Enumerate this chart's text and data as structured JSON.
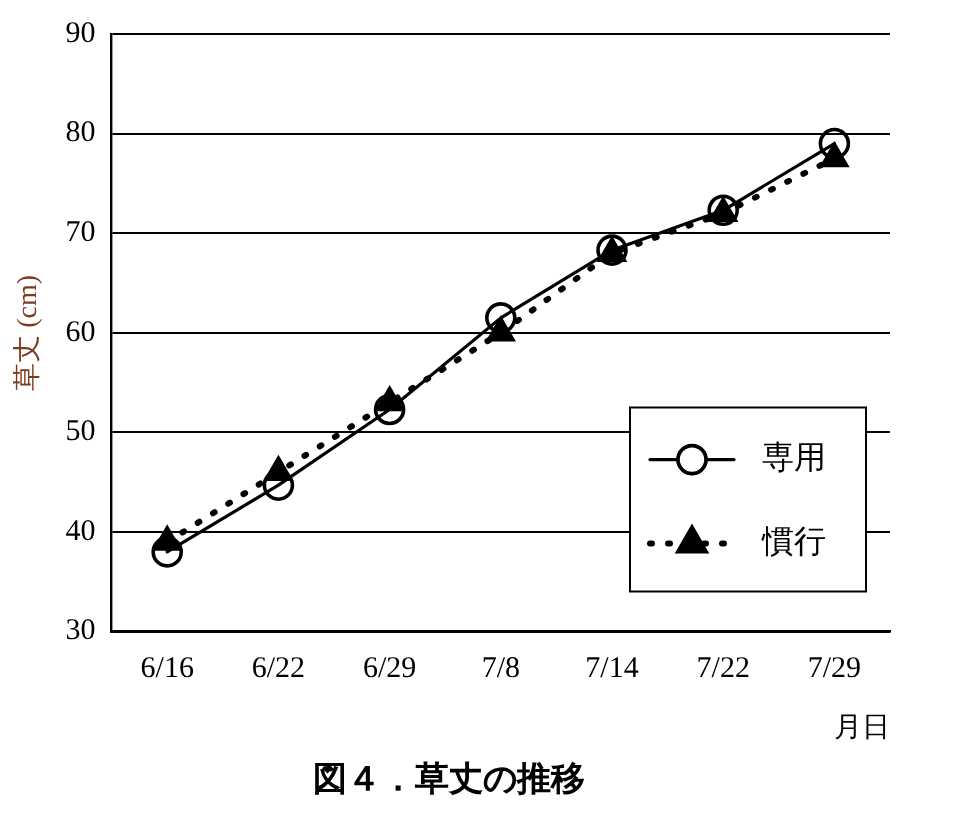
{
  "chart_data": {
    "type": "line",
    "title": "図４．草丈の推移",
    "xlabel": "月日",
    "ylabel": "草丈 (cm)",
    "categories": [
      "6/16",
      "6/22",
      "6/29",
      "7/8",
      "7/14",
      "7/22",
      "7/29"
    ],
    "series": [
      {
        "name": "専用",
        "color": "#000000",
        "marker": "circle",
        "line_style": "solid",
        "values": [
          38,
          44.7,
          52.3,
          61.5,
          68.3,
          72.3,
          79
        ]
      },
      {
        "name": "慣行",
        "color": "#000000",
        "marker": "triangle",
        "line_style": "dotted",
        "values": [
          39,
          46,
          53,
          60,
          68,
          72,
          77.5
        ]
      }
    ],
    "ylim": [
      30,
      90
    ],
    "yticks": [
      30,
      40,
      50,
      60,
      70,
      80,
      90
    ],
    "grid": "y",
    "legend": "bottom right"
  }
}
